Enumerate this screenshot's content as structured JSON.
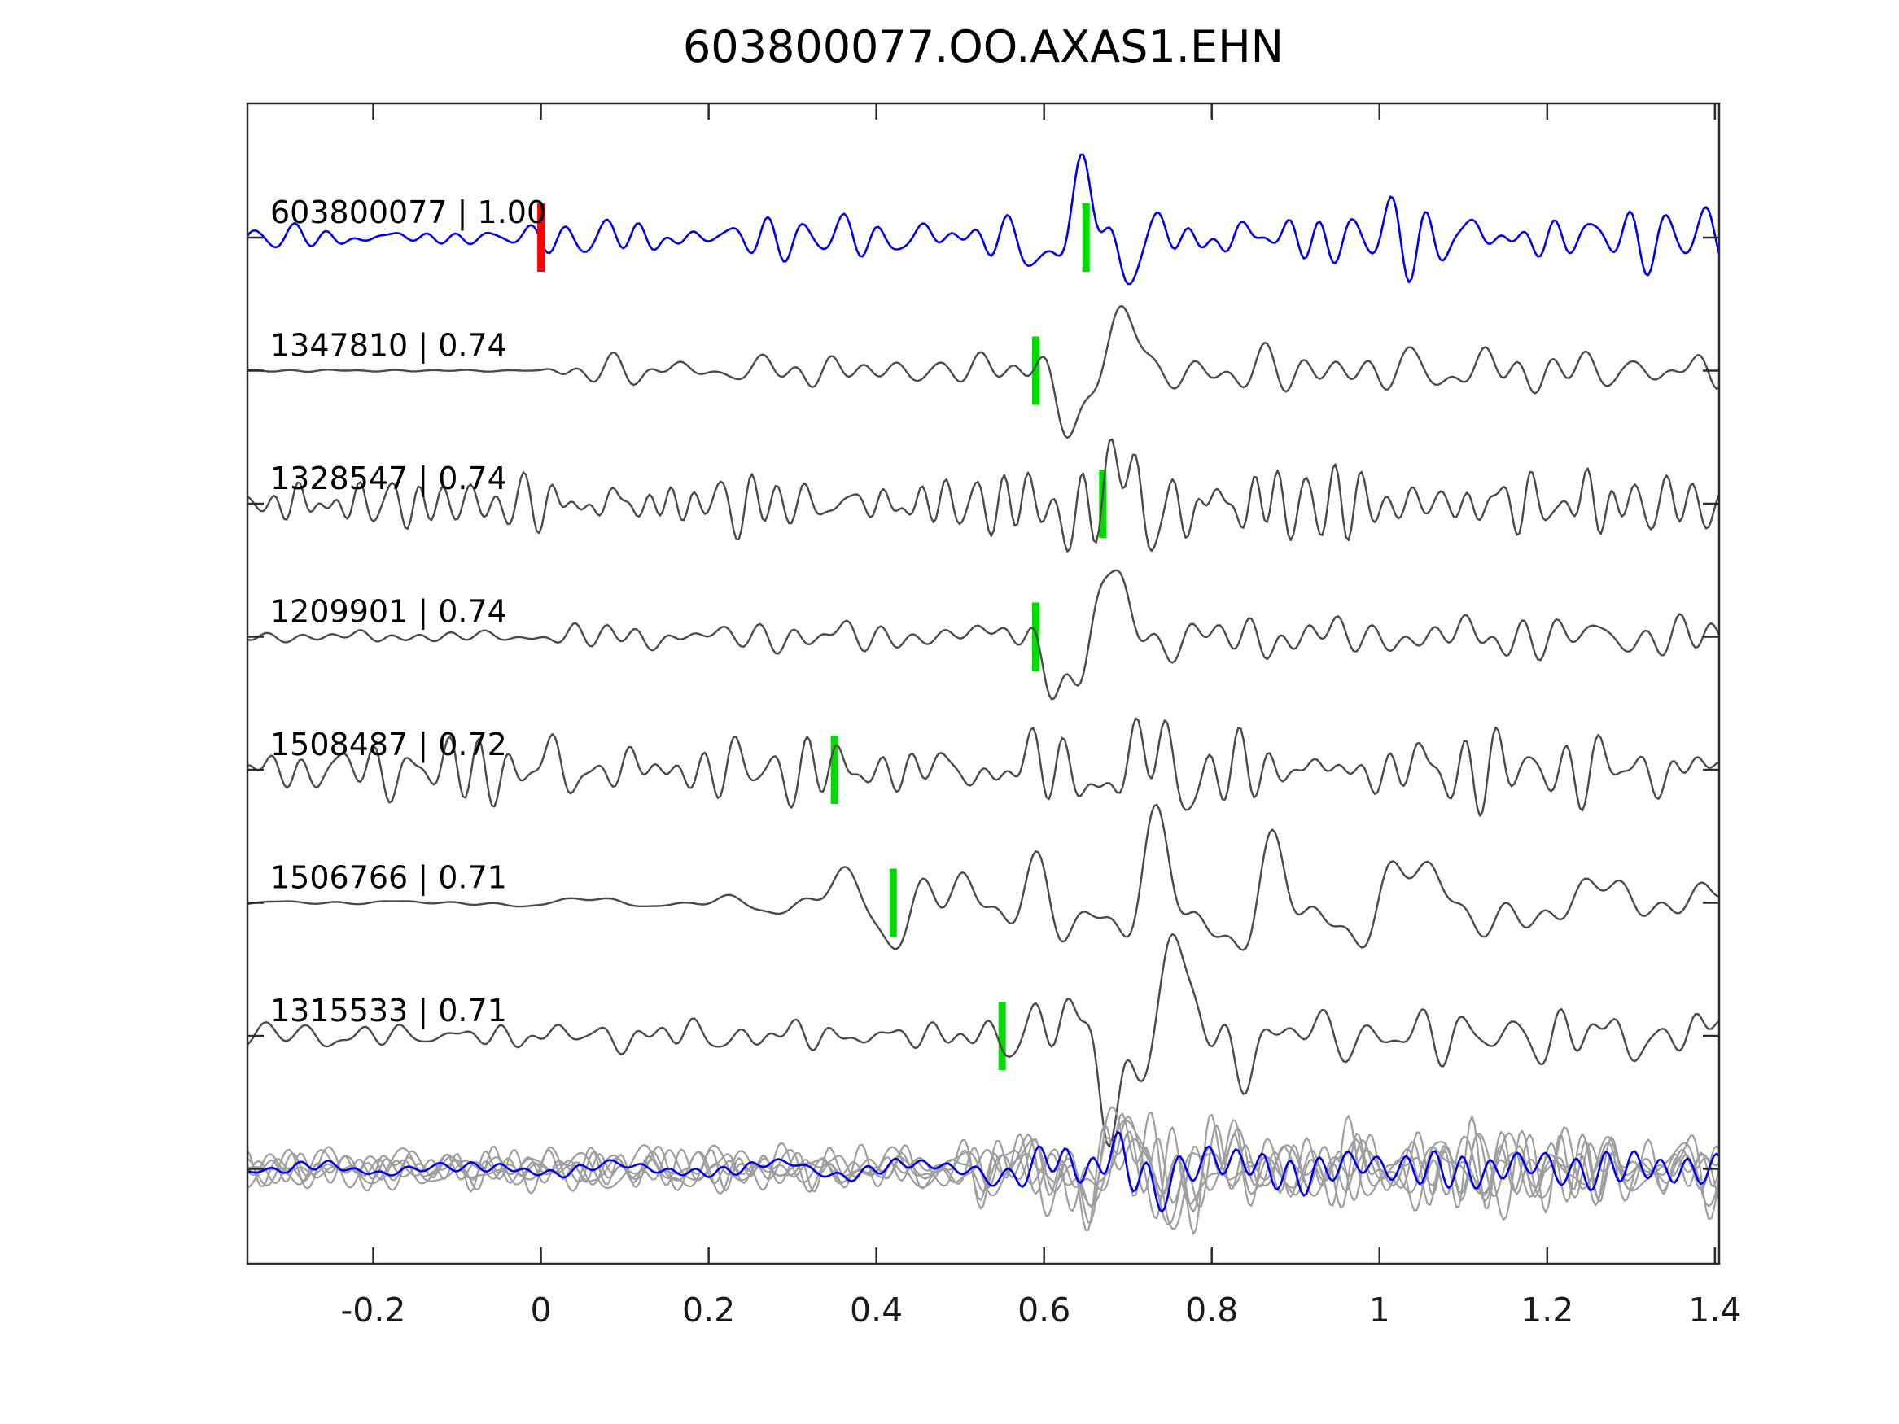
{
  "chart_data": {
    "type": "line",
    "title": "603800077.OO.AXAS1.EHN",
    "legend": "none",
    "grid": false,
    "x_axis": {
      "xlim": [
        -0.35,
        1.405
      ],
      "tick_values": [
        -0.2,
        0,
        0.2,
        0.4,
        0.6,
        0.8,
        1,
        1.2,
        1.4
      ],
      "tick_labels": [
        "-0.2",
        "0",
        "0.2",
        "0.4",
        "0.6",
        "0.8",
        "1",
        "1.2",
        "1.4"
      ]
    },
    "y_axis": {
      "rows": 8,
      "tick_labels": []
    },
    "colors": {
      "target_trace": "#0000ee",
      "template_trace": "#4a4a4a",
      "overlay_gray": "#9e9e9e",
      "pick_marker": "#00dc00",
      "reference_marker": "#ff0000",
      "axis": "#2b2b2b"
    },
    "marker_half_height_px": 42,
    "marker_width_px": 9,
    "traces": [
      {
        "label": "603800077 | 1.00",
        "event_id": "603800077",
        "correlation": 1.0,
        "row": 0,
        "color": "#0000ee",
        "line_width": 2.6,
        "pick_time": 0.65,
        "reference_time": 0.0,
        "synth": {
          "seed": 11,
          "f0": 15,
          "envelope": [
            [
              -0.35,
              13
            ],
            [
              -0.01,
              13
            ],
            [
              0.04,
              22
            ],
            [
              0.5,
              24
            ],
            [
              0.56,
              28
            ],
            [
              0.9,
              40
            ],
            [
              1.405,
              30
            ]
          ],
          "wavelet": {
            "A": 75,
            "t0": 0.65,
            "s": 0.045,
            "f": 9,
            "type": "cos"
          }
        }
      },
      {
        "label": "1347810 | 0.74",
        "event_id": "1347810",
        "correlation": 0.74,
        "row": 1,
        "color": "#4a4a4a",
        "line_width": 2.4,
        "pick_time": 0.59,
        "reference_time": null,
        "synth": {
          "seed": 22,
          "f0": 14,
          "envelope": [
            [
              -0.35,
              1.5
            ],
            [
              0,
              1.5
            ],
            [
              0.03,
              16
            ],
            [
              0.3,
              18
            ],
            [
              0.5,
              22
            ],
            [
              0.65,
              30
            ],
            [
              0.8,
              30
            ],
            [
              1.05,
              28
            ],
            [
              1.405,
              24
            ]
          ],
          "wavelet": {
            "A": 85,
            "t0": 0.665,
            "s": 0.05,
            "f": 7,
            "type": "sin"
          }
        }
      },
      {
        "label": "1328547 | 0.74",
        "event_id": "1328547",
        "correlation": 0.74,
        "row": 2,
        "color": "#4a4a4a",
        "line_width": 2.4,
        "pick_time": 0.67,
        "reference_time": null,
        "synth": {
          "seed": 33,
          "f0": 20,
          "envelope": [
            [
              -0.35,
              32
            ],
            [
              0.55,
              36
            ],
            [
              0.65,
              55
            ],
            [
              0.75,
              55
            ],
            [
              0.9,
              42
            ],
            [
              1.405,
              38
            ]
          ],
          "wavelet": {
            "A": 45,
            "t0": 0.69,
            "s": 0.05,
            "f": 8,
            "type": "cos"
          }
        }
      },
      {
        "label": "1209901 | 0.74",
        "event_id": "1209901",
        "correlation": 0.74,
        "row": 3,
        "color": "#4a4a4a",
        "line_width": 2.4,
        "pick_time": 0.59,
        "reference_time": null,
        "synth": {
          "seed": 44,
          "f0": 13,
          "envelope": [
            [
              -0.35,
              7
            ],
            [
              0,
              7
            ],
            [
              0.04,
              15
            ],
            [
              0.5,
              17
            ],
            [
              0.58,
              24
            ],
            [
              0.75,
              28
            ],
            [
              1.405,
              25
            ]
          ],
          "wavelet": {
            "A": 90,
            "t0": 0.655,
            "s": 0.05,
            "f": 7,
            "type": "sin"
          }
        }
      },
      {
        "label": "1508487 | 0.72",
        "event_id": "1508487",
        "correlation": 0.72,
        "row": 4,
        "color": "#4a4a4a",
        "line_width": 2.4,
        "pick_time": 0.35,
        "reference_time": null,
        "synth": {
          "seed": 55,
          "f0": 18,
          "envelope": [
            [
              -0.35,
              26
            ],
            [
              -0.1,
              38
            ],
            [
              0,
              52
            ],
            [
              0.08,
              38
            ],
            [
              0.35,
              34
            ],
            [
              0.6,
              40
            ],
            [
              0.8,
              44
            ],
            [
              1.405,
              38
            ]
          ],
          "wavelet": {
            "A": 35,
            "t0": 0.73,
            "s": 0.08,
            "f": 8,
            "type": "cos"
          }
        }
      },
      {
        "label": "1506766 | 0.71",
        "event_id": "1506766",
        "correlation": 0.71,
        "row": 5,
        "color": "#4a4a4a",
        "line_width": 2.4,
        "pick_time": 0.42,
        "reference_time": null,
        "synth": {
          "seed": 66,
          "f0": 9,
          "envelope": [
            [
              -0.35,
              5
            ],
            [
              0.18,
              6
            ],
            [
              0.3,
              20
            ],
            [
              0.4,
              45
            ],
            [
              0.5,
              90
            ],
            [
              0.65,
              75
            ],
            [
              0.78,
              90
            ],
            [
              1,
              60
            ],
            [
              1.405,
              52
            ]
          ],
          "wavelet": {
            "A": 55,
            "t0": 0.48,
            "s": 0.06,
            "f": 7,
            "type": "cos"
          }
        }
      },
      {
        "label": "1315533 | 0.71",
        "event_id": "1315533",
        "correlation": 0.71,
        "row": 6,
        "color": "#4a4a4a",
        "line_width": 2.4,
        "pick_time": 0.55,
        "reference_time": null,
        "synth": {
          "seed": 77,
          "f0": 14,
          "envelope": [
            [
              -0.35,
              16
            ],
            [
              0.48,
              18
            ],
            [
              0.56,
              32
            ],
            [
              0.64,
              55
            ],
            [
              0.75,
              60
            ],
            [
              0.88,
              40
            ],
            [
              1.1,
              32
            ],
            [
              1.405,
              28
            ]
          ],
          "wavelet": {
            "A": 100,
            "t0": 0.72,
            "s": 0.065,
            "f": 6.5,
            "type": "sin"
          }
        }
      }
    ],
    "overlay": {
      "row": 7,
      "description": "all template traces overlaid with target trace",
      "gray_members": [
        {
          "seed": 201,
          "f0": 16
        },
        {
          "seed": 202,
          "f0": 17
        },
        {
          "seed": 203,
          "f0": 15
        },
        {
          "seed": 204,
          "f0": 18
        },
        {
          "seed": 205,
          "f0": 16
        },
        {
          "seed": 206,
          "f0": 14
        }
      ],
      "gray_envelope": [
        [
          -0.35,
          22
        ],
        [
          0.5,
          26
        ],
        [
          0.6,
          48
        ],
        [
          0.72,
          55
        ],
        [
          0.9,
          48
        ],
        [
          1.405,
          40
        ]
      ],
      "gray_wavelet": {
        "A": 30,
        "t0": 0.7,
        "s": 0.08,
        "f": 8,
        "type": "cos"
      },
      "gray_line_width": 2.2,
      "blue_member": {
        "seed": 299,
        "f0": 15,
        "envelope": [
          [
            -0.35,
            11
          ],
          [
            0.5,
            13
          ],
          [
            0.6,
            32
          ],
          [
            0.7,
            48
          ],
          [
            0.85,
            32
          ],
          [
            1.405,
            24
          ]
        ],
        "wavelet": {
          "A": 40,
          "t0": 0.69,
          "s": 0.05,
          "f": 9,
          "type": "cos"
        },
        "line_width": 2.6
      }
    },
    "layout": {
      "plot_left": 304,
      "plot_top": 127,
      "plot_right": 2112,
      "plot_bottom": 1553,
      "row0_y": 292,
      "row_spacing": 163.5,
      "tick_len": 20,
      "label_x": 332,
      "label_dy": -18,
      "xtick_label_y": 1624,
      "title_x": 1208,
      "title_y": 76
    }
  }
}
